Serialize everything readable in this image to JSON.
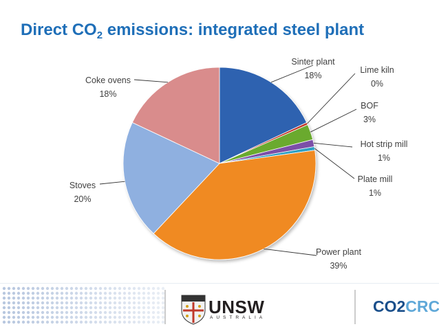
{
  "title": {
    "main": "Direct CO",
    "sub": "2",
    "rest": " emissions: integrated steel plant"
  },
  "chart_data": {
    "type": "pie",
    "title": "Direct CO2 emissions: integrated steel plant",
    "slices": [
      {
        "name": "Sinter plant",
        "value": 18,
        "display": "18%",
        "color": "#2e62b0"
      },
      {
        "name": "Lime kiln",
        "value": 0.4,
        "display": "0%",
        "color": "#c0392b"
      },
      {
        "name": "BOF",
        "value": 2.6,
        "display": "3%",
        "color": "#6aaa2e"
      },
      {
        "name": "Hot strip mill",
        "value": 1.2,
        "display": "1%",
        "color": "#7b4fa8"
      },
      {
        "name": "Plate mill",
        "value": 0.6,
        "display": "1%",
        "color": "#2fa0c4"
      },
      {
        "name": "Power plant",
        "value": 39.2,
        "display": "39%",
        "color": "#f08a24"
      },
      {
        "name": "Stoves",
        "value": 20,
        "display": "20%",
        "color": "#8fb0e0"
      },
      {
        "name": "Coke ovens",
        "value": 18,
        "display": "18%",
        "color": "#d98c8c"
      }
    ],
    "start_angle_deg": 0,
    "direction": "clockwise",
    "labels_outside": true
  },
  "footer": {
    "unsw_name": "UNSW",
    "unsw_subtitle": "AUSTRALIA",
    "co2crc_co": "CO2",
    "co2crc_crc": "CRC"
  }
}
